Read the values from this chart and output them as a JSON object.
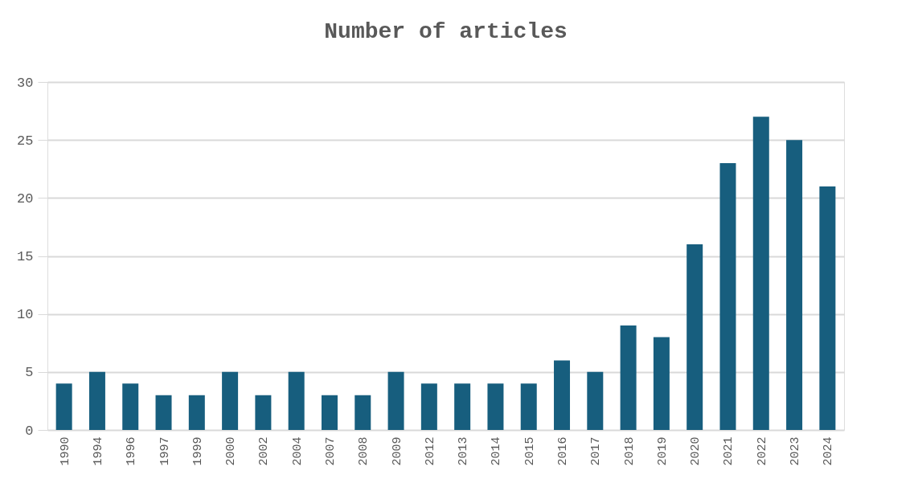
{
  "chart_data": {
    "type": "bar",
    "title": "Number of articles",
    "categories": [
      "1990",
      "1994",
      "1996",
      "1997",
      "1999",
      "2000",
      "2002",
      "2004",
      "2007",
      "2008",
      "2009",
      "2012",
      "2013",
      "2014",
      "2015",
      "2016",
      "2017",
      "2018",
      "2019",
      "2020",
      "2021",
      "2022",
      "2023",
      "2024"
    ],
    "values": [
      4,
      5,
      4,
      3,
      3,
      5,
      3,
      5,
      3,
      3,
      5,
      4,
      4,
      4,
      4,
      6,
      5,
      9,
      8,
      16,
      23,
      27,
      25,
      21
    ],
    "color": "#175e7e",
    "ylim": [
      0,
      30
    ],
    "yticks": [
      0,
      5,
      10,
      15,
      20,
      25,
      30
    ],
    "grid": "y"
  }
}
